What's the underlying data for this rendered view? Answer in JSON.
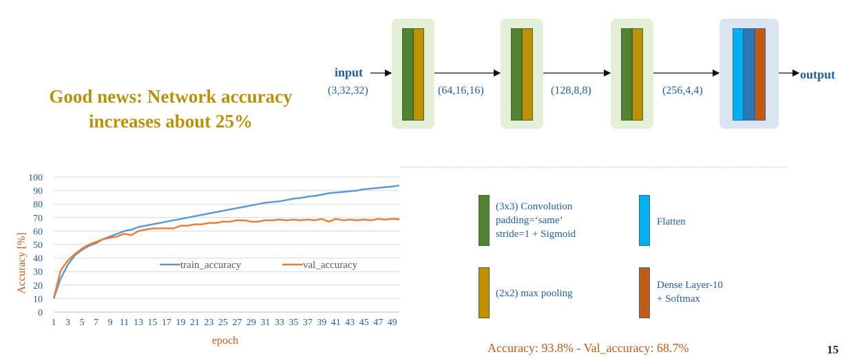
{
  "headline": {
    "line1": "Good news: Network accuracy",
    "line2": "increases about 25%"
  },
  "diagram": {
    "input_label": "input",
    "output_label": "output",
    "shapes": [
      "(3,32,32)",
      "(64,16,16)",
      "(128,8,8)",
      "(256,4,4)"
    ]
  },
  "legend": {
    "conv": {
      "line1": "(3x3) Convolution",
      "line2": "padding=‘same’",
      "line3": "stride=1 + Sigmoid"
    },
    "pool": "(2x2) max pooling",
    "flatten": "Flatten",
    "dense": {
      "line1": "Dense Layer-10",
      "line2": "+ Softmax"
    }
  },
  "colors": {
    "conv": "#548235",
    "pool": "#bf9000",
    "flatten": "#00b0f0",
    "dense_blue": "#2e75b6",
    "dense": "#c55a11",
    "train": "#5b9bd5",
    "val": "#ed7d31",
    "headline": "#b8920a",
    "label_blue": "#1f5fa3"
  },
  "footer": "Accuracy: 93.8% - Val_accuracy: 68.7%",
  "page_number": "15",
  "chart_data": {
    "type": "line",
    "title": "",
    "xlabel": "epoch",
    "ylabel": "Accuracy [%]",
    "ylim": [
      0,
      100
    ],
    "yticks": [
      0,
      10,
      20,
      30,
      40,
      50,
      60,
      70,
      80,
      90,
      100
    ],
    "xticks": [
      1,
      3,
      5,
      7,
      9,
      11,
      13,
      15,
      17,
      19,
      21,
      23,
      25,
      27,
      29,
      31,
      33,
      35,
      37,
      39,
      41,
      43,
      45,
      47,
      49
    ],
    "grid": true,
    "legend_position": "center",
    "x": [
      1,
      2,
      3,
      4,
      5,
      6,
      7,
      8,
      9,
      10,
      11,
      12,
      13,
      14,
      15,
      16,
      17,
      18,
      19,
      20,
      21,
      22,
      23,
      24,
      25,
      26,
      27,
      28,
      29,
      30,
      31,
      32,
      33,
      34,
      35,
      36,
      37,
      38,
      39,
      40,
      41,
      42,
      43,
      44,
      45,
      46,
      47,
      48,
      49,
      50
    ],
    "series": [
      {
        "name": "train_accuracy",
        "values": [
          10,
          25,
          35,
          42,
          46,
          49,
          51,
          54,
          56,
          58,
          60,
          61,
          63,
          64,
          65,
          66,
          67,
          68,
          69,
          70,
          71,
          72,
          73,
          74,
          75,
          76,
          77,
          78,
          79,
          80,
          81,
          81.5,
          82,
          83,
          84,
          84.5,
          85.5,
          86,
          87,
          88,
          88.5,
          89,
          89.5,
          90,
          91,
          91.5,
          92,
          92.5,
          93,
          93.8
        ]
      },
      {
        "name": "val_accuracy",
        "values": [
          10,
          31,
          38,
          43,
          47,
          50,
          52,
          54,
          55,
          56,
          58,
          57,
          60,
          61,
          62,
          62,
          62,
          62,
          64,
          64,
          65,
          65,
          66,
          66,
          67,
          67,
          68,
          68,
          67,
          67,
          68,
          68,
          68.5,
          68,
          68.5,
          68,
          68.5,
          68,
          69,
          67,
          69,
          68,
          68.5,
          68,
          68.5,
          68,
          69,
          68.5,
          69,
          68.7
        ]
      }
    ]
  }
}
